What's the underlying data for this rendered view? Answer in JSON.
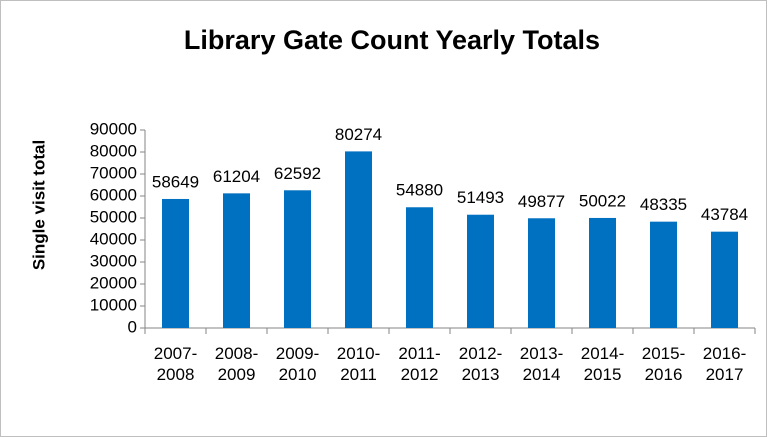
{
  "chart_data": {
    "type": "bar",
    "title": "Library Gate Count Yearly Totals",
    "y_label": "Single visit total",
    "categories": [
      "2007-2008",
      "2008-2009",
      "2009-2010",
      "2010-2011",
      "2011-2012",
      "2012-2013",
      "2013-2014",
      "2014-2015",
      "2015-2016",
      "2016-2017"
    ],
    "values": [
      58649,
      61204,
      62592,
      80274,
      54880,
      51493,
      49877,
      50022,
      48335,
      43784
    ],
    "color": "#0070c0",
    "ylim": [
      0,
      90000
    ],
    "yticks": [
      0,
      10000,
      20000,
      30000,
      40000,
      50000,
      60000,
      70000,
      80000,
      90000
    ],
    "grid": false
  }
}
